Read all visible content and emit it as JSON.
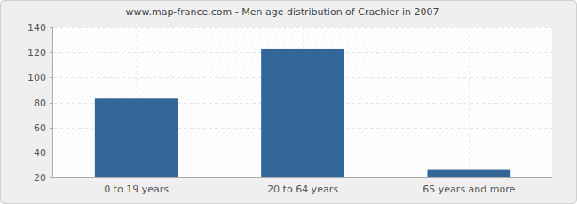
{
  "chart_data": {
    "type": "bar",
    "title": "www.map-france.com - Men age distribution of Crachier in 2007",
    "categories": [
      "0 to 19 years",
      "20 to 64 years",
      "65 years and more"
    ],
    "values": [
      83,
      123,
      26
    ],
    "color": "#336699",
    "ylim": [
      20,
      140
    ],
    "yticks": [
      20,
      40,
      60,
      80,
      100,
      120,
      140
    ],
    "grid": true
  }
}
